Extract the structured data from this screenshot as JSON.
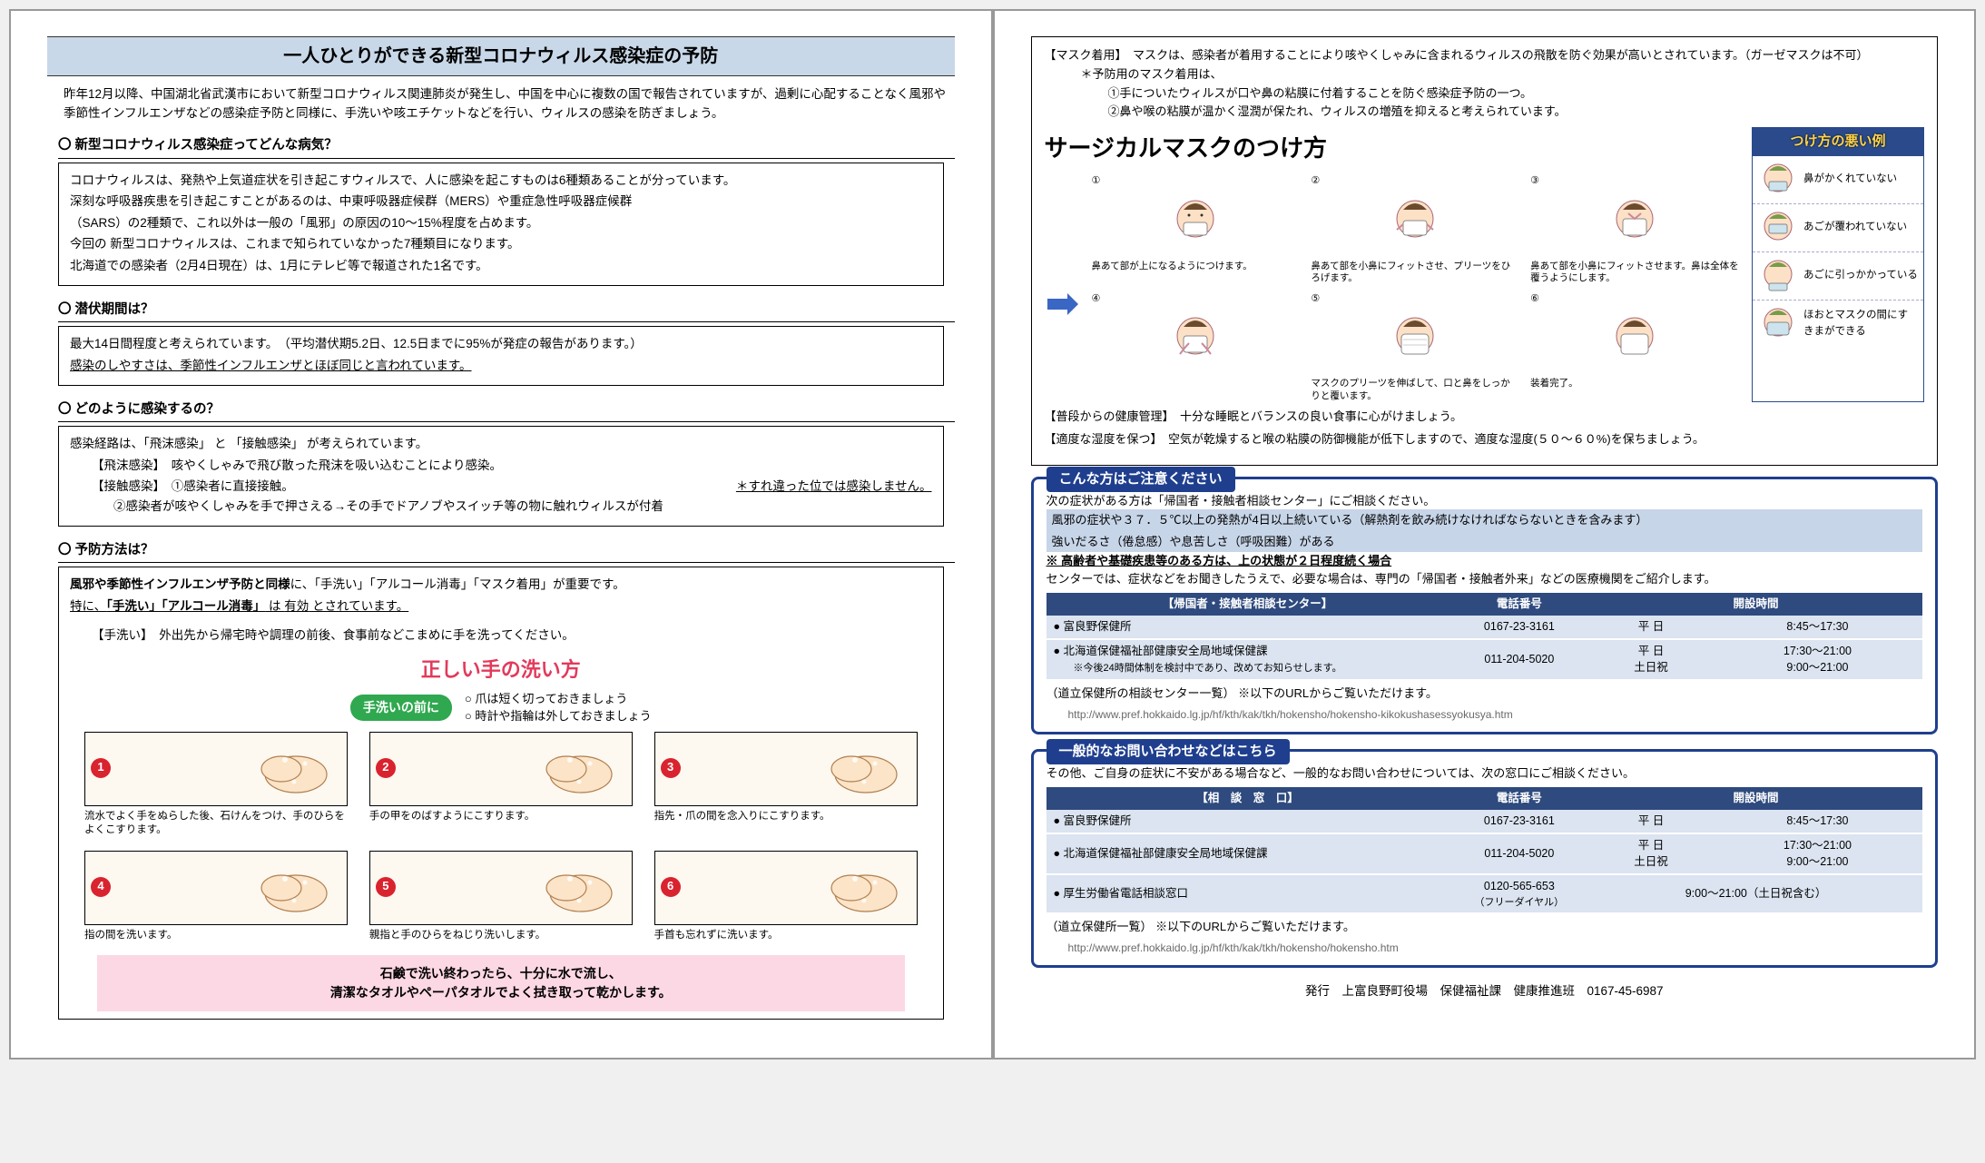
{
  "left": {
    "title": "一人ひとりができる新型コロナウィルス感染症の予防",
    "intro": "昨年12月以降、中国湖北省武漢市において新型コロナウィルス関連肺炎が発生し、中国を中心に複数の国で報告されていますが、過剰に心配することなく風邪や季節性インフルエンザなどの感染症予防と同様に、手洗いや咳エチケットなどを行い、ウィルスの感染を防ぎましょう。",
    "s1_h": "〇 新型コロナウィルス感染症ってどんな病気？",
    "s1_p1": "コロナウィルスは、発熱や上気道症状を引き起こすウィルスで、人に感染を起こすものは6種類あることが分っています。",
    "s1_p2": "深刻な呼吸器疾患を引き起こすことがあるのは、中東呼吸器症候群（MERS）や重症急性呼吸器症候群",
    "s1_p3": "（SARS）の2種類で、これ以外は一般の「風邪」の原因の10～15%程度を占めます。",
    "s1_p4": "今回の 新型コロナウィルスは、これまで知られていなかった7種類目になります。",
    "s1_p5": "北海道での感染者（2月4日現在）は、1月にテレビ等で報道された1名です。",
    "s2_h": "〇 潜伏期間は？",
    "s2_p1": "最大14日間程度と考えられています。　（平均潜伏期5.2日、12.5日までに95%が発症の報告があります。）",
    "s2_p2": "感染のしやすさは、季節性インフルエンザとほぼ同じと言われています。",
    "s3_h": "〇 どのように感染するの？",
    "s3_p1": "感染経路は、「飛沫感染」 と 「接触感染」 が考えられています。",
    "s3_p2a": "【飛沫感染】　咳やくしゃみで飛び散った飛沫を吸い込むことにより感染。",
    "s3_p2b": "【接触感染】　①感染者に直接接触。",
    "s3_note": "＊すれ違った位では感染しません。",
    "s3_p2c": "②感染者が咳やくしゃみを手で押さえる→その手でドアノブやスイッチ等の物に触れウィルスが付着",
    "s4_h": "〇 予防方法は？",
    "s4_p1a": "風邪や季節性インフルエンザ予防と同様",
    "s4_p1b": "に、「手洗い」「アルコール消毒」「マスク着用」が重要です。",
    "s4_p2a": "特に、",
    "s4_p2b": "「手洗い」「アルコール消毒」",
    "s4_p2c": " は ",
    "s4_p2d": "有効",
    "s4_p2e": " とされています。",
    "s4_p3": "【手洗い】　外出先から帰宅時や調理の前後、食事前などこまめに手を洗ってください。",
    "hw_title": "正しい手の洗い方",
    "before_badge": "手洗いの前に",
    "before_l1": "○ 爪は短く切っておきましょう",
    "before_l2": "○ 時計や指輪は外しておきましょう",
    "hands": [
      {
        "n": "1",
        "cap": "流水でよく手をぬらした後、石けんをつけ、手のひらをよくこすります。"
      },
      {
        "n": "2",
        "cap": "手の甲をのばすようにこすります。"
      },
      {
        "n": "3",
        "cap": "指先・爪の間を念入りにこすります。"
      },
      {
        "n": "4",
        "cap": "指の間を洗います。"
      },
      {
        "n": "5",
        "cap": "親指と手のひらをねじり洗いします。"
      },
      {
        "n": "6",
        "cap": "手首も忘れずに洗います。"
      }
    ],
    "pink1": "石鹸で洗い終わったら、十分に水で流し、",
    "pink2": "清潔なタオルやペーパタオルでよく拭き取って乾かします。"
  },
  "right": {
    "mask_h": "【マスク着用】　マスクは、感染者が着用することにより咳やくしゃみに含まれるウィルスの飛散を防ぐ効果が高いとされています。（ガーゼマスクは不可）",
    "mask_sub": "＊予防用のマスク着用は、",
    "mask_b1": "①手についたウィルスが口や鼻の粘膜に付着することを防ぐ感染症予防の一つ。",
    "mask_b2": "②鼻や喉の粘膜が温かく湿潤が保たれ、ウィルスの増殖を抑えると考えられています。",
    "mask_title": "サージカルマスクのつけ方",
    "steps": [
      {
        "n": "①",
        "cap": "鼻あて部が上になるようにつけます。"
      },
      {
        "n": "②",
        "cap": "鼻あて部を小鼻にフィットさせ、プリーツをひろげます。"
      },
      {
        "n": "③",
        "cap": "鼻あて部を小鼻にフィットさせます。鼻は全体を覆うようにします。"
      },
      {
        "n": "④",
        "cap": ""
      },
      {
        "n": "⑤",
        "cap": "マスクのプリーツを伸ばして、口と鼻をしっかりと覆います。"
      },
      {
        "n": "⑥",
        "cap": "装着完了。"
      }
    ],
    "wrong_h": "つけ方の悪い例",
    "wrong": [
      "鼻がかくれていない",
      "あごが覆われていない",
      "あごに引っかかっている",
      "ほおとマスクの間にすきまができる"
    ],
    "health1": "【普段からの健康管理】　十分な睡眠とバランスの良い食事に心がけましょう。",
    "health2": "【適度な湿度を保つ】　空気が乾燥すると喉の粘膜の防御機能が低下しますので、適度な湿度(５０～６０%)を保ちましょう。",
    "c1_tab": "こんな方はご注意ください",
    "c1_p1": "次の症状がある方は「帰国者・接触者相談センター」にご相談ください。",
    "c1_p2": "風邪の症状や３７．５℃以上の発熱が4日以上続いている（解熱剤を飲み続けなければならないときを含みます）",
    "c1_p3": "強いだるさ（倦怠感）や息苦しさ（呼吸困難）がある",
    "c1_p4": "※ 高齢者や基礎疾患等のある方は、上の状態が２日程度続く場合",
    "c1_p5": "センターでは、症状などをお聞きしたうえで、必要な場合は、専門の「帰国者・接触者外来」などの医療機関をご紹介します。",
    "t1h1": "【帰国者・接触者相談センター】",
    "t1h2": "電話番号",
    "t1h3": "開設時間",
    "t1r1c1": "● 富良野保健所",
    "t1r1c2": "0167-23-3161",
    "t1r1c3": "平 日",
    "t1r1c4": "8:45～17:30",
    "t1r2c1": "● 北海道保健福祉部健康安全局地域保健課",
    "t1r2c1b": "　　※今後24時間体制を検討中であり、改めてお知らせします。",
    "t1r2c2": "011-204-5020",
    "t1r2c3a": "平 日",
    "t1r2c3b": "土日祝",
    "t1r2c4a": "17:30～21:00",
    "t1r2c4b": "9:00～21:00",
    "t1_note": "（道立保健所の相談センター一覧） ※以下のURLからご覧いただけます。",
    "t1_url": "http://www.pref.hokkaido.lg.jp/hf/kth/kak/tkh/hokensho/hokensho-kikokushasessyokusya.htm",
    "c2_tab": "一般的なお問い合わせなどはこちら",
    "c2_p1": "その他、ご自身の症状に不安がある場合など、一般的なお問い合わせについては、次の窓口にご相談ください。",
    "t2h1": "【相　談　窓　口】",
    "t2r1c1": "● 富良野保健所",
    "t2r1c2": "0167-23-3161",
    "t2r1c3": "平 日",
    "t2r1c4": "8:45～17:30",
    "t2r2c1": "● 北海道保健福祉部健康安全局地域保健課",
    "t2r2c2": "011-204-5020",
    "t2r2c3a": "平 日",
    "t2r2c3b": "土日祝",
    "t2r2c4a": "17:30～21:00",
    "t2r2c4b": "9:00～21:00",
    "t2r3c1": "● 厚生労働省電話相談窓口",
    "t2r3c2": "0120-565-653",
    "t2r3c2b": "（フリーダイヤル）",
    "t2r3c4": "9:00～21:00（土日祝含む）",
    "t2_note": "（道立保健所一覧） ※以下のURLからご覧いただけます。",
    "t2_url": "http://www.pref.hokkaido.lg.jp/hf/kth/kak/tkh/hokensho/hokensho.htm",
    "footer": "発行　上富良野町役場　保健福祉課　健康推進班　0167-45-6987"
  },
  "colors": {
    "title_bg": "#c8d8e8",
    "red": "#d9232e",
    "pink": "#fcd7e4",
    "green": "#2fa84f",
    "hw_red": "#e23a5b",
    "frame_blue": "#1f3f8e",
    "th_blue": "#2e4a7e",
    "td_blue": "#dbe4f0",
    "sub_blue": "#c7d5e8",
    "wrong_border": "#2b4a8b",
    "wrong_text": "#ffd54a"
  }
}
